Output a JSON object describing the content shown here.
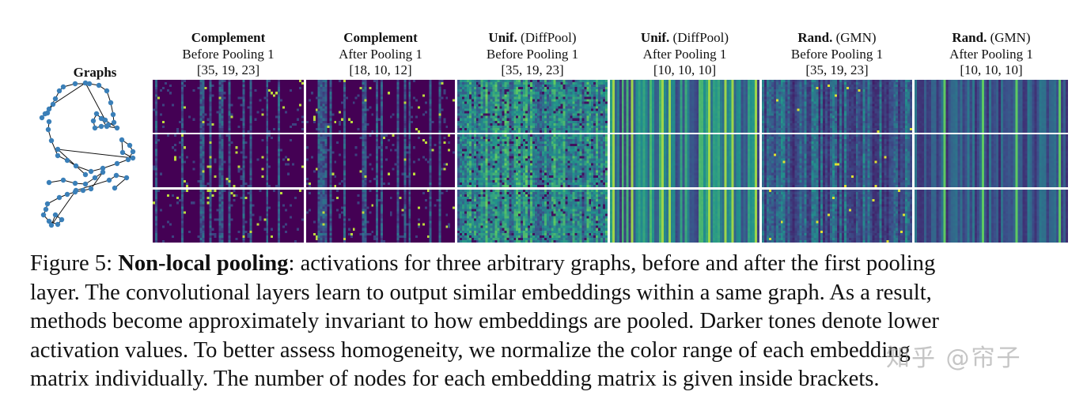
{
  "figure": {
    "graphs_title": "Graphs",
    "columns": [
      {
        "method": "Complement",
        "method_extra": "",
        "stage": "Before Pooling 1",
        "nodes": "[35, 19, 23]",
        "style": "sparse"
      },
      {
        "method": "Complement",
        "method_extra": "",
        "stage": "After Pooling 1",
        "nodes": "[18, 10, 12]",
        "style": "sparse"
      },
      {
        "method": "Unif.",
        "method_extra": " (DiffPool)",
        "stage": "Before Pooling 1",
        "nodes": "[35, 19, 23]",
        "style": "dense"
      },
      {
        "method": "Unif.",
        "method_extra": " (DiffPool)",
        "stage": "After Pooling 1",
        "nodes": "[10, 10, 10]",
        "style": "stripes"
      },
      {
        "method": "Rand.",
        "method_extra": " (GMN)",
        "stage": "Before Pooling 1",
        "nodes": "[35, 19, 23]",
        "style": "medium"
      },
      {
        "method": "Rand.",
        "method_extra": " (GMN)",
        "stage": "After Pooling 1",
        "nodes": "[10, 10, 10]",
        "style": "stripes-dark"
      }
    ],
    "colormap": [
      "#440154",
      "#3b528b",
      "#21918c",
      "#5ec962",
      "#fde725"
    ],
    "node_color": "#3a7fb8"
  },
  "caption": {
    "label": "Figure 5: ",
    "bold": "Non-local pooling",
    "lines": [
      ": activations for three arbitrary graphs, before and after the first pooling",
      "layer. The convolutional layers learn to output similar embeddings within a same graph. As a result,",
      "methods become approximately invariant to how embeddings are pooled. Darker tones denote lower",
      "activation values. To better assess homogeneity, we normalize the color range of each embedding",
      "matrix individually. The number of nodes for each embedding matrix is given inside brackets."
    ]
  },
  "watermark": "知乎 @帘子"
}
